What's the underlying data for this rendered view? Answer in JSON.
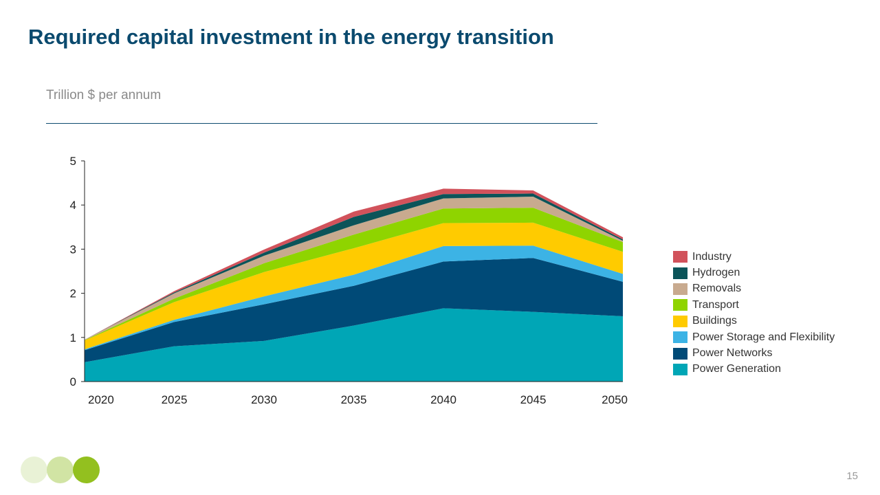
{
  "slide": {
    "title": "Required capital investment in the energy transition",
    "page_number": "15"
  },
  "branding": {
    "dot_colors": [
      "#e9f2d6",
      "#d1e4a4",
      "#93c01f"
    ]
  },
  "chart_data": {
    "type": "area",
    "stacked": true,
    "title": "",
    "subtitle": "Trillion  $ per annum",
    "xlabel": "",
    "ylabel": "",
    "x": [
      2020,
      2025,
      2030,
      2035,
      2040,
      2045,
      2050
    ],
    "x_tick_labels": [
      "2020",
      "2025",
      "2030",
      "2035",
      "2040",
      "2045",
      "2050"
    ],
    "y_ticks": [
      0,
      1,
      2,
      3,
      4,
      5
    ],
    "ylim": [
      0,
      5
    ],
    "grid": false,
    "legend_position": "right",
    "series": [
      {
        "name": "Power Generation",
        "color": "#00a6b6",
        "values": [
          0.44,
          0.8,
          0.92,
          1.27,
          1.66,
          1.58,
          1.48
        ]
      },
      {
        "name": "Power Networks",
        "color": "#004a77",
        "values": [
          0.27,
          0.55,
          0.83,
          0.9,
          1.06,
          1.22,
          0.78
        ]
      },
      {
        "name": "Power Storage and Flexibility",
        "color": "#3cb3e5",
        "values": [
          0.02,
          0.05,
          0.18,
          0.25,
          0.35,
          0.28,
          0.18
        ]
      },
      {
        "name": "Buildings",
        "color": "#ffcb00",
        "values": [
          0.2,
          0.4,
          0.55,
          0.6,
          0.52,
          0.52,
          0.5
        ]
      },
      {
        "name": "Transport",
        "color": "#8fd400",
        "values": [
          0.01,
          0.08,
          0.2,
          0.31,
          0.33,
          0.34,
          0.22
        ]
      },
      {
        "name": "Removals",
        "color": "#c8aa8f",
        "values": [
          0.01,
          0.12,
          0.17,
          0.21,
          0.23,
          0.25,
          0.03
        ]
      },
      {
        "name": "Hydrogen",
        "color": "#0b5459",
        "values": [
          0.0,
          0.02,
          0.07,
          0.19,
          0.1,
          0.07,
          0.03
        ]
      },
      {
        "name": "Industry",
        "color": "#d1525b",
        "values": [
          0.0,
          0.03,
          0.07,
          0.12,
          0.12,
          0.07,
          0.05
        ]
      }
    ]
  }
}
